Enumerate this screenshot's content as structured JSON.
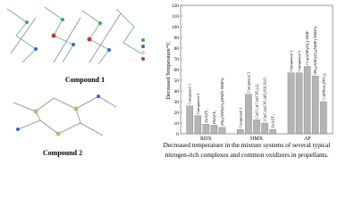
{
  "chart_data": {
    "type": "bar",
    "y_label": "Decreased Temperature/°C",
    "ylim": [
      0,
      120
    ],
    "yticks": [
      0,
      10,
      20,
      30,
      40,
      50,
      60,
      70,
      80,
      90,
      100,
      110,
      120
    ],
    "color": "#b4b4b4",
    "groups": [
      {
        "name": "RDX",
        "bars": [
          {
            "label": "Compound 1",
            "value": 26
          },
          {
            "label": "Compound 2",
            "value": 17
          },
          {
            "label": "ZnAZT₂",
            "value": 9
          },
          {
            "label": "PbAZT₂",
            "value": 8
          },
          {
            "label": "[Pb₂(ANPyO)₂(NMP)·NMP]ₙ",
            "value": 6
          }
        ]
      },
      {
        "name": "HMX",
        "bars": [
          {
            "label": "Compound 1",
            "value": 4
          },
          {
            "label": "Compound 2",
            "value": 37
          },
          {
            "label": "Cu(Cl₂)(Cn)(ClO₄)₂]₂",
            "value": 13
          },
          {
            "label": "[Co(Cn)(ClO₄)(H₂O)]·H₂O",
            "value": 10
          },
          {
            "label": "ZnAZT₂",
            "value": 4
          }
        ]
      },
      {
        "name": "AP",
        "bars": [
          {
            "label": "Compound 1",
            "value": 57
          },
          {
            "label": "Compound 2",
            "value": 57
          },
          {
            "label": "[Cu(ANPyO)₂]·DMF",
            "value": 63
          },
          {
            "label": "[Pb₂(ANPyO)₂(NMP)·NMP]ₙ",
            "value": 54
          },
          {
            "label": "Cu(Mtta)₂(NO₃)₂",
            "value": 30
          }
        ]
      }
    ]
  },
  "figure_labels": [
    "Compound 1",
    "Compound 2"
  ],
  "caption": [
    "Decreased temperature in the mixture systems of several typical",
    "nitrogen-rich complexes and common oxidizers in propellants."
  ]
}
